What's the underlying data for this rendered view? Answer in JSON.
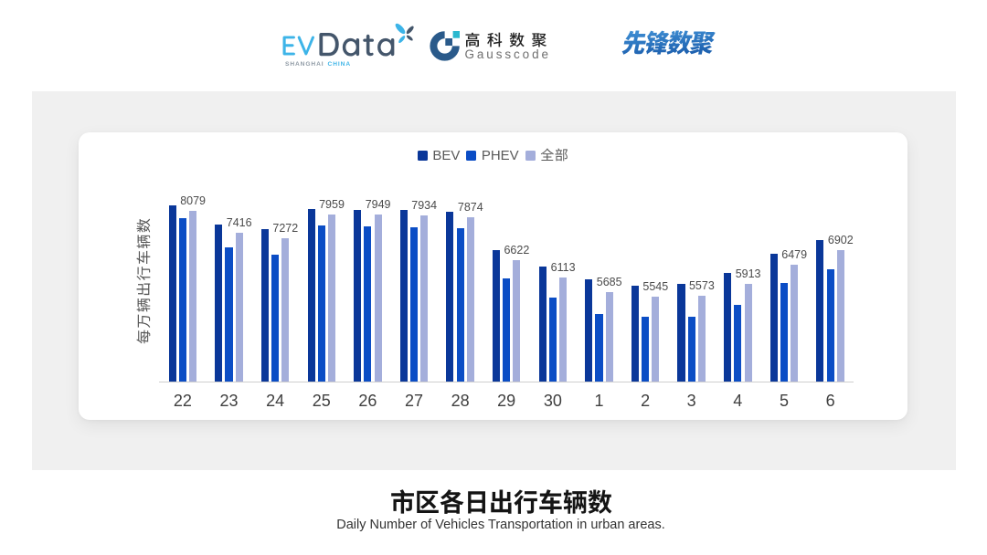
{
  "header": {
    "evdata_logo": {
      "text_primary": "EV",
      "text_secondary": "Data",
      "subtext_left": "SHANGHAI",
      "subtext_right": "CHINA",
      "color_primary": "#3db4e8",
      "color_secondary": "#44566b"
    },
    "gausscode_logo": {
      "name_cn": "高科数聚",
      "name_en": "Gausscode",
      "mark_color": "#2a5a8a",
      "mark_accent": "#2bb8cf"
    },
    "xianfeng_logo": {
      "name_cn": "先锋数聚",
      "color": "#2b79c5"
    }
  },
  "chart_data": {
    "type": "bar",
    "categories": [
      "22",
      "23",
      "24",
      "25",
      "26",
      "27",
      "28",
      "29",
      "30",
      "1",
      "2",
      "3",
      "4",
      "5",
      "6"
    ],
    "series": [
      {
        "name": "BEV",
        "color": "#0a3799",
        "values": [
          8216,
          7659,
          7538,
          8124,
          8105,
          8095,
          8030,
          6916,
          6431,
          6060,
          5864,
          5920,
          6235,
          6795,
          7193
        ]
      },
      {
        "name": "PHEV",
        "color": "#0b4dc5",
        "values": [
          7863,
          6980,
          6765,
          7632,
          7613,
          7583,
          7564,
          6079,
          5519,
          5037,
          4935,
          4935,
          5288,
          5939,
          6356
        ]
      },
      {
        "name": "全部",
        "color": "#a4aedb",
        "labels_shown": true,
        "values": [
          8079,
          7416,
          7272,
          7959,
          7949,
          7934,
          7874,
          6622,
          6113,
          5685,
          5545,
          5573,
          5913,
          6479,
          6902
        ]
      }
    ],
    "value_labels": [
      "8079",
      "7416",
      "7272",
      "7959",
      "7949",
      "7934",
      "7874",
      "6622",
      "6113",
      "5685",
      "5545",
      "5573",
      "5913",
      "6479",
      "6902"
    ],
    "ylabel": "每万辆出行车辆数",
    "xlabel": "",
    "ylim": [
      3030,
      8980
    ],
    "grid": false,
    "legend_position": "top",
    "legend": [
      "BEV",
      "PHEV",
      "全部"
    ]
  },
  "footer": {
    "title": "市区各日出行车辆数",
    "subtitle": "Daily Number of Vehicles Transportation in urban areas."
  }
}
